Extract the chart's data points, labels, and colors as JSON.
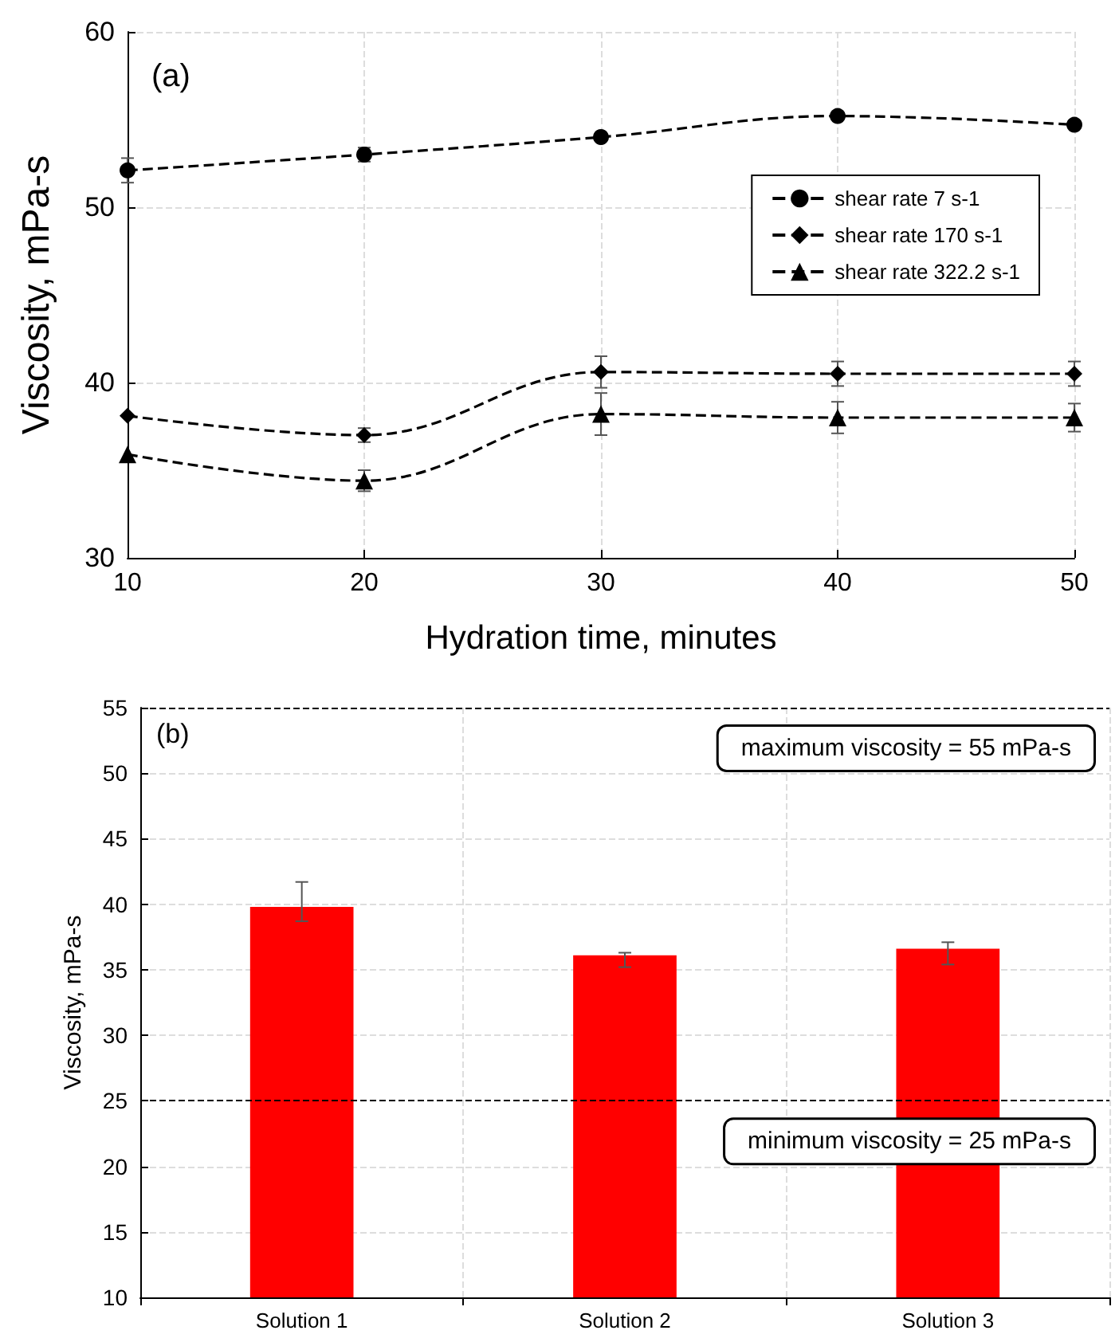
{
  "chart_data": [
    {
      "type": "line",
      "xlabel": "Hydration time, minutes",
      "ylabel": "Viscosity, mPa-s",
      "annotations": [
        "(a)"
      ],
      "x": [
        10,
        20,
        30,
        40,
        50
      ],
      "xlim": [
        10,
        50
      ],
      "xticks": [
        10,
        20,
        30,
        40,
        50
      ],
      "ylim": [
        30,
        60
      ],
      "yticks": [
        30,
        40,
        50,
        60
      ],
      "grid": true,
      "legend": "right",
      "line_style": "dashed",
      "series": [
        {
          "name": "shear rate 7 s-1",
          "color": "#000000",
          "marker": "circle",
          "values": [
            52.1,
            53.0,
            54.0,
            55.2,
            54.7
          ],
          "errors": [
            0.7,
            0.4,
            null,
            null,
            null
          ]
        },
        {
          "name": "shear rate 170 s-1",
          "color": "#000000",
          "marker": "diamond",
          "values": [
            38.1,
            37.0,
            40.6,
            40.5,
            40.5
          ],
          "errors": [
            null,
            0.4,
            0.9,
            0.7,
            0.7
          ]
        },
        {
          "name": "shear rate 322.2 s-1",
          "color": "#000000",
          "marker": "triangle",
          "values": [
            35.9,
            34.4,
            38.2,
            38.0,
            38.0
          ],
          "errors": [
            null,
            0.6,
            1.2,
            0.9,
            0.8
          ]
        }
      ]
    },
    {
      "type": "bar",
      "ylabel": "Viscosity, mPa-s",
      "annotations": [
        "(b)"
      ],
      "categories": [
        "Solution 1",
        "Solution 2",
        "Solution 3"
      ],
      "values": [
        39.8,
        36.1,
        36.6
      ],
      "color": "#ff0000",
      "errors": [
        [
          38.7,
          41.7
        ],
        [
          35.2,
          36.3
        ],
        [
          35.4,
          37.1
        ]
      ],
      "ylim": [
        10,
        55
      ],
      "yticks": [
        10,
        15,
        20,
        25,
        30,
        35,
        40,
        45,
        50,
        55
      ],
      "grid": true,
      "ref_lines": [
        {
          "axis": "y",
          "value": 55,
          "label": "maximum viscosity = 55 mPa-s",
          "color": "#000000",
          "line_style": "dashed"
        },
        {
          "axis": "y",
          "value": 25,
          "label": "minimum viscosity = 25 mPa-s",
          "color": "#000000",
          "line_style": "dashed"
        }
      ]
    }
  ]
}
